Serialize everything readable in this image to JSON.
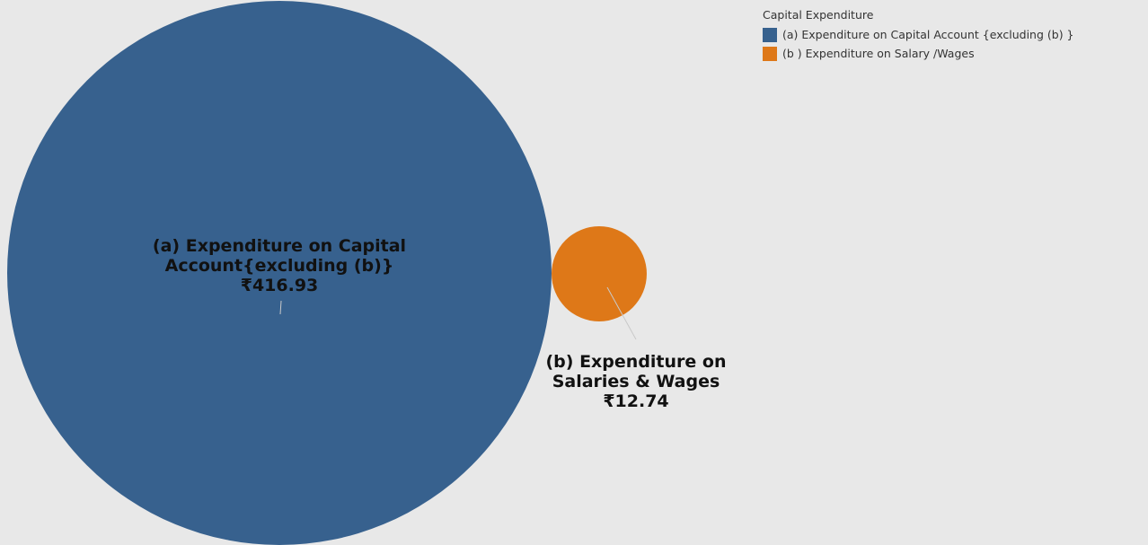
{
  "chart_data": {
    "type": "bubble",
    "legend": {
      "title": "Capital Expenditure",
      "placement": "top-right",
      "entries": [
        {
          "label": "(a) Expenditure on Capital Account {excluding (b) }",
          "color": "#37618e"
        },
        {
          "label": "(b ) Expenditure on Salary /Wages",
          "color": "#de7818"
        }
      ]
    },
    "bubbles": [
      {
        "name_lines": [
          "(a) Expenditure on Capital",
          "Account{excluding (b)}"
        ],
        "value": 416.93,
        "value_label": "₹416.93",
        "color": "#37618e"
      },
      {
        "name_lines": [
          "(b) Expenditure on",
          "Salaries & Wages"
        ],
        "value": 12.74,
        "value_label": "₹12.74",
        "color": "#de7818"
      }
    ]
  }
}
